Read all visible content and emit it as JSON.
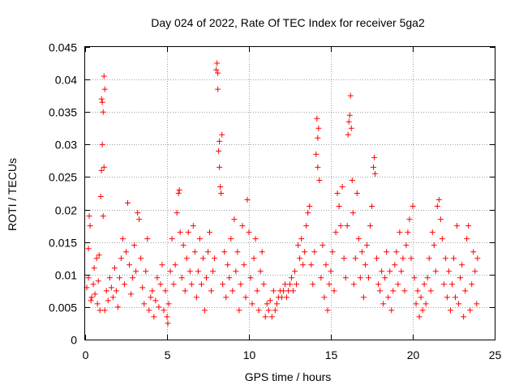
{
  "chart_data": {
    "type": "scatter",
    "title": "Day 024 of 2022, Rate Of TEC Index for receiver 5ga2",
    "xlabel": "GPS time / hours",
    "ylabel": "ROTI / TECUs",
    "xlim": [
      0,
      25
    ],
    "ylim": [
      0,
      0.045
    ],
    "grid": true,
    "marker": "+",
    "color": "#ff0000",
    "xticks": [
      0,
      5,
      10,
      15,
      20,
      25
    ],
    "yticks": [
      0,
      0.005,
      0.01,
      0.015,
      0.02,
      0.025,
      0.03,
      0.035,
      0.04,
      0.045
    ],
    "xtick_labels": [
      "0",
      "5",
      "10",
      "15",
      "20",
      "25"
    ],
    "ytick_labels": [
      "0",
      "0.005",
      "0.01",
      "0.015",
      "0.02",
      "0.025",
      "0.03",
      "0.035",
      "0.04",
      "0.045"
    ],
    "series": [
      {
        "name": "ROTI",
        "points": [
          [
            0.1,
            0.008
          ],
          [
            0.2,
            0.0095
          ],
          [
            0.2,
            0.014
          ],
          [
            0.25,
            0.019
          ],
          [
            0.3,
            0.0175
          ],
          [
            0.35,
            0.006
          ],
          [
            0.4,
            0.0065
          ],
          [
            0.5,
            0.0085
          ],
          [
            0.55,
            0.011
          ],
          [
            0.6,
            0.007
          ],
          [
            0.7,
            0.0125
          ],
          [
            0.75,
            0.0055
          ],
          [
            0.8,
            0.009
          ],
          [
            0.85,
            0.013
          ],
          [
            0.9,
            0.0045
          ],
          [
            0.95,
            0.022
          ],
          [
            1.0,
            0.026
          ],
          [
            1.0,
            0.037
          ],
          [
            1.05,
            0.0365
          ],
          [
            1.05,
            0.03
          ],
          [
            1.1,
            0.035
          ],
          [
            1.1,
            0.019
          ],
          [
            1.15,
            0.0405
          ],
          [
            1.2,
            0.0385
          ],
          [
            1.15,
            0.0265
          ],
          [
            1.2,
            0.0045
          ],
          [
            1.3,
            0.0075
          ],
          [
            1.4,
            0.006
          ],
          [
            1.5,
            0.0095
          ],
          [
            1.6,
            0.008
          ],
          [
            1.7,
            0.0065
          ],
          [
            1.8,
            0.011
          ],
          [
            1.9,
            0.0075
          ],
          [
            2.0,
            0.005
          ],
          [
            2.1,
            0.0095
          ],
          [
            2.2,
            0.0125
          ],
          [
            2.3,
            0.0155
          ],
          [
            2.4,
            0.0085
          ],
          [
            2.5,
            0.0135
          ],
          [
            2.6,
            0.021
          ],
          [
            2.7,
            0.0115
          ],
          [
            2.8,
            0.007
          ],
          [
            2.9,
            0.0095
          ],
          [
            3.0,
            0.0145
          ],
          [
            3.1,
            0.0105
          ],
          [
            3.2,
            0.0195
          ],
          [
            3.3,
            0.0185
          ],
          [
            3.4,
            0.0125
          ],
          [
            3.5,
            0.008
          ],
          [
            3.6,
            0.0055
          ],
          [
            3.7,
            0.0105
          ],
          [
            3.8,
            0.0155
          ],
          [
            3.9,
            0.0045
          ],
          [
            4.0,
            0.0065
          ],
          [
            4.1,
            0.0075
          ],
          [
            4.2,
            0.0035
          ],
          [
            4.3,
            0.006
          ],
          [
            4.4,
            0.0095
          ],
          [
            4.5,
            0.005
          ],
          [
            4.6,
            0.0085
          ],
          [
            4.7,
            0.0115
          ],
          [
            4.8,
            0.0045
          ],
          [
            4.9,
            0.0075
          ],
          [
            5.0,
            0.0035
          ],
          [
            5.05,
            0.0025
          ],
          [
            5.1,
            0.0055
          ],
          [
            5.2,
            0.0105
          ],
          [
            5.3,
            0.0155
          ],
          [
            5.4,
            0.0085
          ],
          [
            5.5,
            0.0115
          ],
          [
            5.6,
            0.0195
          ],
          [
            5.7,
            0.0225
          ],
          [
            5.75,
            0.023
          ],
          [
            5.8,
            0.0165
          ],
          [
            5.9,
            0.0095
          ],
          [
            6.0,
            0.0145
          ],
          [
            6.1,
            0.0075
          ],
          [
            6.2,
            0.0125
          ],
          [
            6.3,
            0.0165
          ],
          [
            6.4,
            0.0105
          ],
          [
            6.5,
            0.0085
          ],
          [
            6.6,
            0.0175
          ],
          [
            6.7,
            0.0135
          ],
          [
            6.8,
            0.0065
          ],
          [
            6.9,
            0.0105
          ],
          [
            7.0,
            0.0155
          ],
          [
            7.1,
            0.0085
          ],
          [
            7.2,
            0.0125
          ],
          [
            7.3,
            0.0045
          ],
          [
            7.4,
            0.0095
          ],
          [
            7.5,
            0.0135
          ],
          [
            7.6,
            0.0165
          ],
          [
            7.7,
            0.0075
          ],
          [
            7.8,
            0.0105
          ],
          [
            7.9,
            0.0125
          ],
          [
            8.0,
            0.0415
          ],
          [
            8.05,
            0.0425
          ],
          [
            8.1,
            0.041
          ],
          [
            8.1,
            0.0385
          ],
          [
            8.15,
            0.029
          ],
          [
            8.2,
            0.0305
          ],
          [
            8.2,
            0.0265
          ],
          [
            8.25,
            0.0235
          ],
          [
            8.3,
            0.0225
          ],
          [
            8.35,
            0.0315
          ],
          [
            8.4,
            0.0085
          ],
          [
            8.5,
            0.0135
          ],
          [
            8.6,
            0.0065
          ],
          [
            8.7,
            0.0115
          ],
          [
            8.8,
            0.0095
          ],
          [
            8.9,
            0.0155
          ],
          [
            9.0,
            0.0075
          ],
          [
            9.1,
            0.0185
          ],
          [
            9.2,
            0.0105
          ],
          [
            9.3,
            0.0135
          ],
          [
            9.4,
            0.0045
          ],
          [
            9.5,
            0.0085
          ],
          [
            9.6,
            0.0175
          ],
          [
            9.7,
            0.0115
          ],
          [
            9.8,
            0.0065
          ],
          [
            9.9,
            0.0215
          ],
          [
            10.0,
            0.0165
          ],
          [
            10.1,
            0.0095
          ],
          [
            10.2,
            0.0055
          ],
          [
            10.3,
            0.0125
          ],
          [
            10.4,
            0.0155
          ],
          [
            10.5,
            0.0075
          ],
          [
            10.6,
            0.0045
          ],
          [
            10.7,
            0.0105
          ],
          [
            10.8,
            0.0135
          ],
          [
            10.9,
            0.0085
          ],
          [
            11.0,
            0.0035
          ],
          [
            11.1,
            0.0055
          ],
          [
            11.2,
            0.0045
          ],
          [
            11.3,
            0.006
          ],
          [
            11.4,
            0.0035
          ],
          [
            11.5,
            0.0075
          ],
          [
            11.6,
            0.0045
          ],
          [
            11.7,
            0.0055
          ],
          [
            11.8,
            0.0065
          ],
          [
            11.9,
            0.0075
          ],
          [
            12.0,
            0.0065
          ],
          [
            12.1,
            0.0075
          ],
          [
            12.2,
            0.0085
          ],
          [
            12.3,
            0.0065
          ],
          [
            12.4,
            0.0075
          ],
          [
            12.5,
            0.0085
          ],
          [
            12.6,
            0.0095
          ],
          [
            12.7,
            0.0075
          ],
          [
            12.8,
            0.0105
          ],
          [
            12.9,
            0.0085
          ],
          [
            13.0,
            0.0145
          ],
          [
            13.1,
            0.0125
          ],
          [
            13.2,
            0.0155
          ],
          [
            13.3,
            0.0115
          ],
          [
            13.4,
            0.0135
          ],
          [
            13.5,
            0.0175
          ],
          [
            13.6,
            0.0195
          ],
          [
            13.7,
            0.0205
          ],
          [
            13.8,
            0.0115
          ],
          [
            13.9,
            0.0085
          ],
          [
            14.0,
            0.0135
          ],
          [
            14.1,
            0.0285
          ],
          [
            14.15,
            0.034
          ],
          [
            14.2,
            0.031
          ],
          [
            14.2,
            0.0265
          ],
          [
            14.25,
            0.0325
          ],
          [
            14.3,
            0.0245
          ],
          [
            14.4,
            0.0095
          ],
          [
            14.5,
            0.0145
          ],
          [
            14.6,
            0.0065
          ],
          [
            14.7,
            0.0115
          ],
          [
            14.8,
            0.0045
          ],
          [
            14.9,
            0.0085
          ],
          [
            15.0,
            0.0105
          ],
          [
            15.1,
            0.0135
          ],
          [
            15.2,
            0.0075
          ],
          [
            15.3,
            0.0165
          ],
          [
            15.4,
            0.0225
          ],
          [
            15.5,
            0.0205
          ],
          [
            15.6,
            0.0175
          ],
          [
            15.7,
            0.0235
          ],
          [
            15.8,
            0.0125
          ],
          [
            15.9,
            0.0095
          ],
          [
            16.0,
            0.0175
          ],
          [
            16.05,
            0.0315
          ],
          [
            16.1,
            0.0335
          ],
          [
            16.15,
            0.0345
          ],
          [
            16.2,
            0.0375
          ],
          [
            16.25,
            0.0325
          ],
          [
            16.3,
            0.0245
          ],
          [
            16.35,
            0.0195
          ],
          [
            16.4,
            0.0085
          ],
          [
            16.5,
            0.0125
          ],
          [
            16.6,
            0.0225
          ],
          [
            16.7,
            0.0155
          ],
          [
            16.8,
            0.0095
          ],
          [
            16.9,
            0.0135
          ],
          [
            17.0,
            0.0065
          ],
          [
            17.1,
            0.0115
          ],
          [
            17.2,
            0.0145
          ],
          [
            17.3,
            0.0095
          ],
          [
            17.4,
            0.0175
          ],
          [
            17.5,
            0.0205
          ],
          [
            17.6,
            0.0265
          ],
          [
            17.65,
            0.028
          ],
          [
            17.7,
            0.0255
          ],
          [
            17.8,
            0.0125
          ],
          [
            17.9,
            0.0085
          ],
          [
            18.0,
            0.0075
          ],
          [
            18.1,
            0.0105
          ],
          [
            18.2,
            0.0055
          ],
          [
            18.3,
            0.0095
          ],
          [
            18.4,
            0.0135
          ],
          [
            18.5,
            0.0065
          ],
          [
            18.6,
            0.0105
          ],
          [
            18.7,
            0.0045
          ],
          [
            18.8,
            0.0075
          ],
          [
            18.9,
            0.0115
          ],
          [
            19.0,
            0.0135
          ],
          [
            19.1,
            0.0085
          ],
          [
            19.2,
            0.0165
          ],
          [
            19.3,
            0.0105
          ],
          [
            19.4,
            0.0125
          ],
          [
            19.5,
            0.0075
          ],
          [
            19.6,
            0.0145
          ],
          [
            19.7,
            0.0165
          ],
          [
            19.8,
            0.0185
          ],
          [
            19.9,
            0.0125
          ],
          [
            20.0,
            0.0205
          ],
          [
            20.1,
            0.0095
          ],
          [
            20.2,
            0.0055
          ],
          [
            20.3,
            0.0075
          ],
          [
            20.4,
            0.0035
          ],
          [
            20.5,
            0.0065
          ],
          [
            20.6,
            0.0045
          ],
          [
            20.7,
            0.0085
          ],
          [
            20.8,
            0.0055
          ],
          [
            20.9,
            0.0095
          ],
          [
            21.0,
            0.0125
          ],
          [
            21.1,
            0.0075
          ],
          [
            21.2,
            0.0165
          ],
          [
            21.3,
            0.0145
          ],
          [
            21.4,
            0.0105
          ],
          [
            21.5,
            0.0205
          ],
          [
            21.6,
            0.0215
          ],
          [
            21.7,
            0.0185
          ],
          [
            21.8,
            0.0155
          ],
          [
            21.9,
            0.0085
          ],
          [
            22.0,
            0.0125
          ],
          [
            22.1,
            0.0065
          ],
          [
            22.2,
            0.0105
          ],
          [
            22.3,
            0.0045
          ],
          [
            22.4,
            0.0085
          ],
          [
            22.5,
            0.0125
          ],
          [
            22.6,
            0.0065
          ],
          [
            22.7,
            0.0175
          ],
          [
            22.8,
            0.0055
          ],
          [
            22.9,
            0.0095
          ],
          [
            23.0,
            0.0115
          ],
          [
            23.1,
            0.0035
          ],
          [
            23.2,
            0.0075
          ],
          [
            23.3,
            0.0155
          ],
          [
            23.4,
            0.0175
          ],
          [
            23.5,
            0.0045
          ],
          [
            23.6,
            0.0085
          ],
          [
            23.7,
            0.0135
          ],
          [
            23.8,
            0.0105
          ],
          [
            23.9,
            0.0055
          ],
          [
            23.95,
            0.0125
          ]
        ]
      }
    ]
  }
}
